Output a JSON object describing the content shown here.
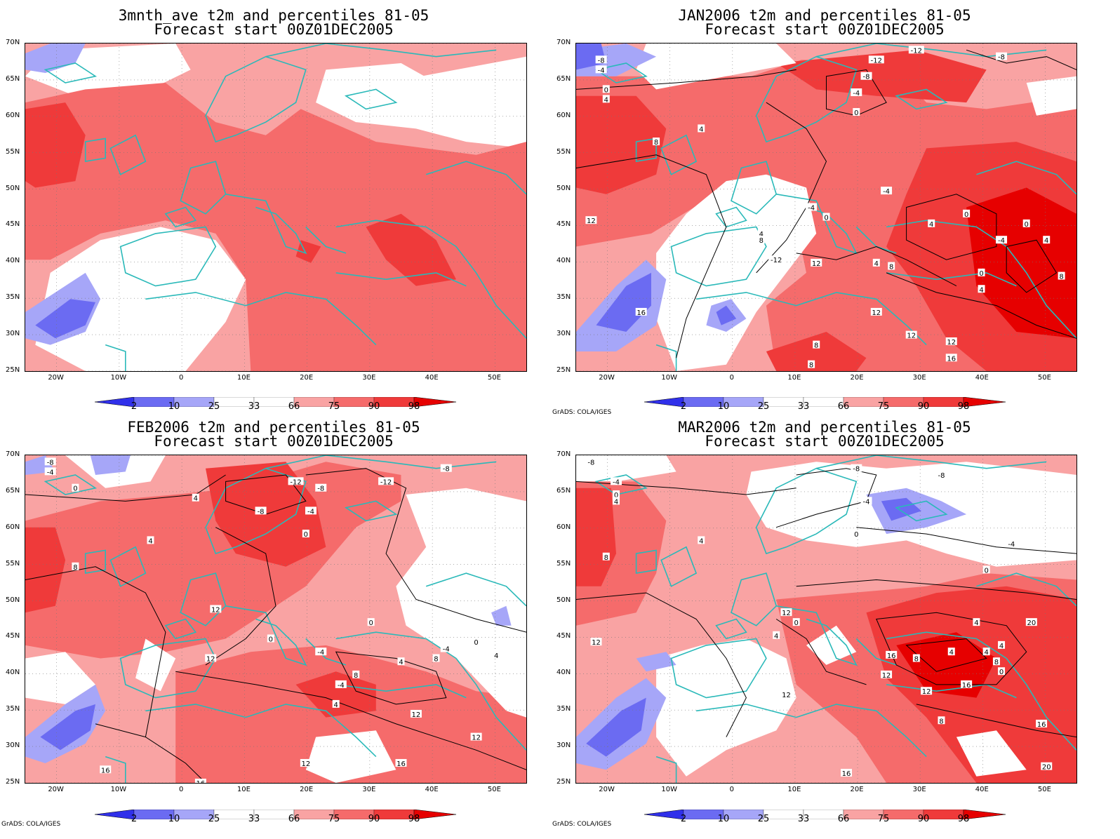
{
  "colors": {
    "white": "#ffffff",
    "c_lt_red": "#f9a3a3",
    "c_red1": "#f56b6b",
    "c_red2": "#ef3a3a",
    "c_red3": "#e60000",
    "c_lt_blue": "#a6a6f8",
    "c_blue1": "#6b6bf2",
    "c_blue2": "#3030ea",
    "coast": "#2ab9b9",
    "contour": "#000000"
  },
  "colorbar": {
    "labels": [
      "2",
      "10",
      "25",
      "33",
      "66",
      "75",
      "90",
      "98"
    ]
  },
  "axes": {
    "lat_labels": [
      "70N",
      "65N",
      "60N",
      "55N",
      "50N",
      "45N",
      "40N",
      "35N",
      "30N",
      "25N"
    ],
    "lon_labels": [
      "20W",
      "10W",
      "0",
      "10E",
      "20E",
      "30E",
      "40E",
      "50E"
    ]
  },
  "credit": "GrADS: COLA/IGES",
  "panels": [
    {
      "title": "3mnth_ave t2m and percentiles 81-05",
      "subtitle": "Forecast start 00Z01DEC2005",
      "contour_labels": []
    },
    {
      "title": "JAN2006 t2m and percentiles 81-05",
      "subtitle": "Forecast start 00Z01DEC2005",
      "contour_labels": [
        "-12",
        "-12",
        "-8",
        "-8",
        "-4",
        "-8",
        "-4",
        "0",
        "4",
        "8",
        "4",
        "0",
        "-4",
        "-4",
        "0",
        "4",
        "8",
        "12",
        "-12",
        "12",
        "4",
        "8",
        "4",
        "0",
        "16",
        "12",
        "8",
        "12",
        "16",
        "8",
        "12",
        "4",
        "0",
        "-4",
        "0",
        "4",
        "8"
      ]
    },
    {
      "title": "FEB2006 t2m and percentiles 81-05",
      "subtitle": "Forecast start 00Z01DEC2005",
      "contour_labels": [
        "-8",
        "-4",
        "0",
        "4",
        "-12",
        "-8",
        "-8",
        "-4",
        "-12",
        "-8",
        "0",
        "4",
        "8",
        "12",
        "0",
        "-4",
        "0",
        "4",
        "-4",
        "8",
        "12",
        "4",
        "8",
        "12",
        "4",
        "12",
        "16",
        "12",
        "16",
        "16",
        "0",
        "-4"
      ]
    },
    {
      "title": "MAR2006 t2m and percentiles 81-05",
      "subtitle": "Forecast start 00Z01DEC2005",
      "contour_labels": [
        "-8",
        "-4",
        "0",
        "4",
        "-8",
        "-8",
        "-4",
        "4",
        "0",
        "-4",
        "8",
        "12",
        "0",
        "4",
        "12",
        "4",
        "8",
        "12",
        "16",
        "20",
        "16",
        "12",
        "4",
        "4",
        "8",
        "4",
        "0",
        "16",
        "12",
        "8",
        "20",
        "16",
        "0"
      ]
    }
  ]
}
